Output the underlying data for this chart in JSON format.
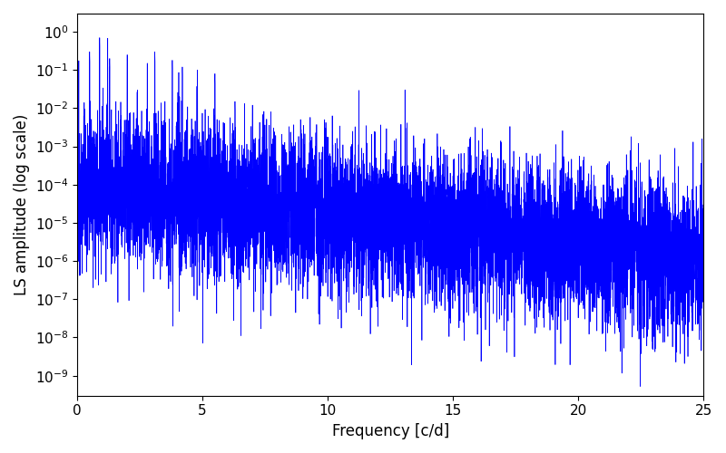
{
  "xlabel": "Frequency [c/d]",
  "ylabel": "LS amplitude (log scale)",
  "xlim": [
    0,
    25
  ],
  "ylim_bottom": 3e-10,
  "ylim_top": 3.0,
  "line_color": "#0000FF",
  "background_color": "#ffffff",
  "xlabel_fontsize": 12,
  "ylabel_fontsize": 12,
  "seed": 12345,
  "n_points": 8000,
  "freq_max": 25.0
}
